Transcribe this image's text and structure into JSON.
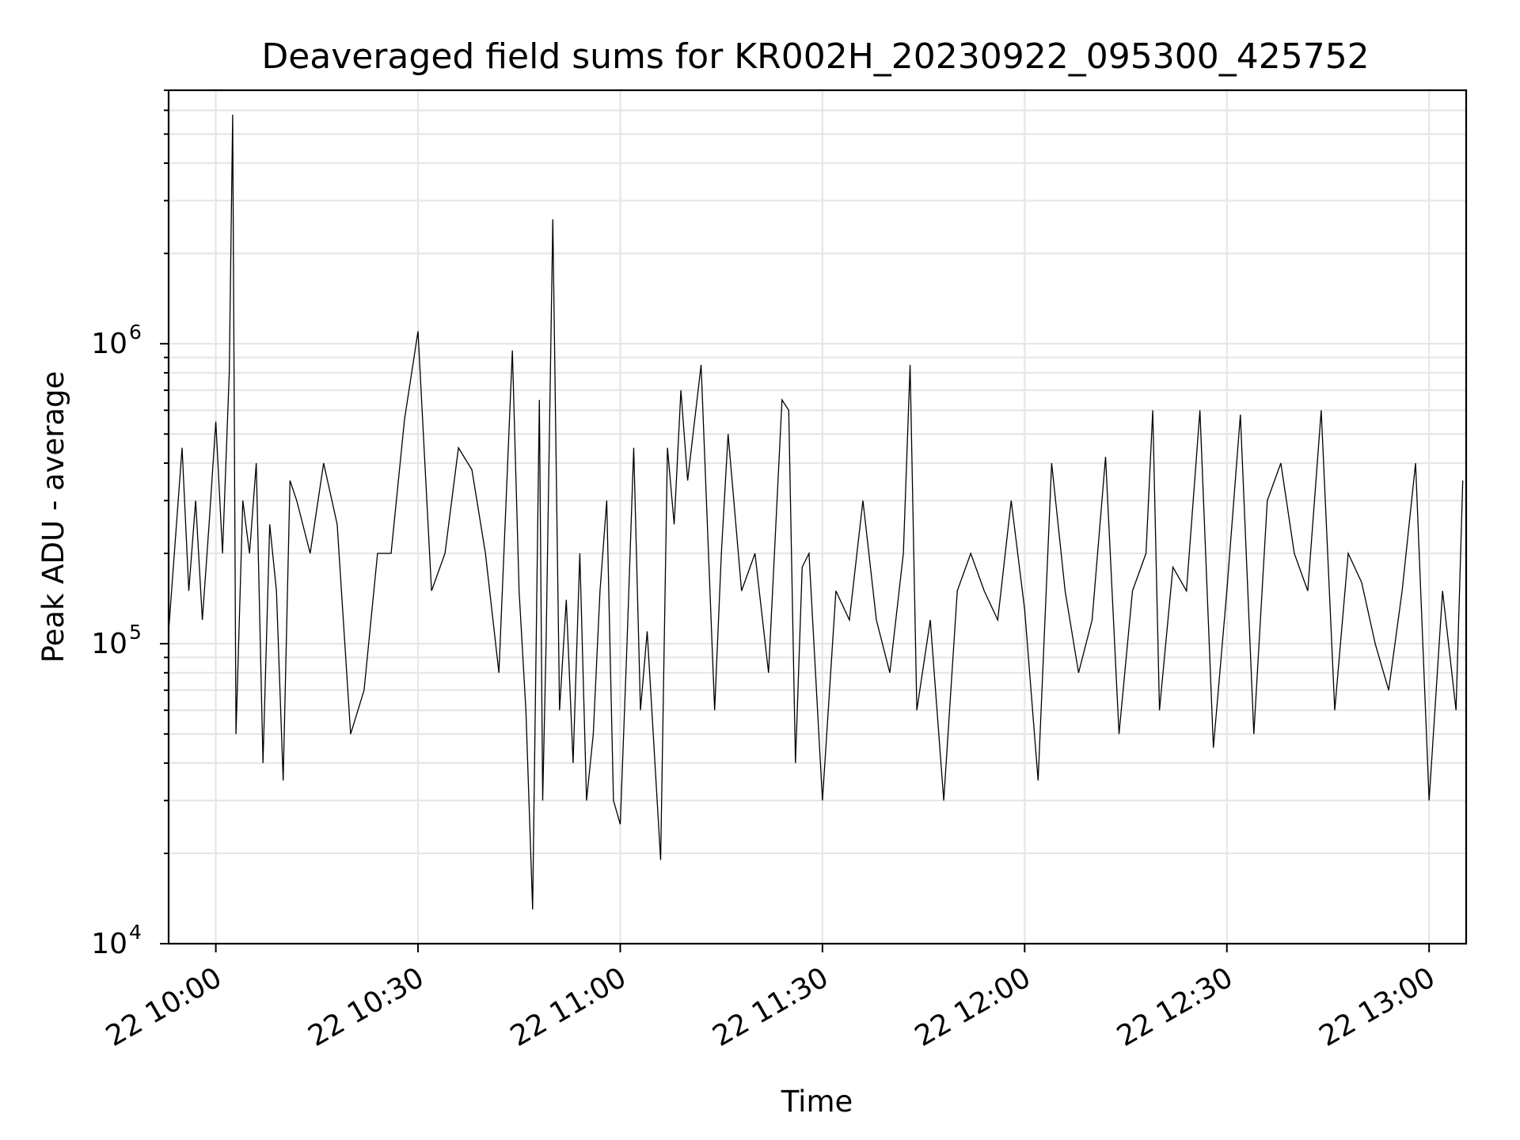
{
  "chart_data": {
    "type": "line",
    "title": "Deaveraged field sums for KR002H_20230922_095300_425752",
    "xlabel": "Time",
    "ylabel": "Peak ADU - average",
    "yscale": "log",
    "ylim": [
      10000,
      7000000
    ],
    "xlim": [
      "2023-09-22 09:53:00",
      "2023-09-22 13:05:30"
    ],
    "grid": true,
    "x_ticks": [
      {
        "value": "2023-09-22 10:00",
        "label": "22 10:00"
      },
      {
        "value": "2023-09-22 10:30",
        "label": "22 10:30"
      },
      {
        "value": "2023-09-22 11:00",
        "label": "22 11:00"
      },
      {
        "value": "2023-09-22 11:30",
        "label": "22 11:30"
      },
      {
        "value": "2023-09-22 12:00",
        "label": "22 12:00"
      },
      {
        "value": "2023-09-22 12:30",
        "label": "22 12:30"
      },
      {
        "value": "2023-09-22 13:00",
        "label": "22 13:00"
      }
    ],
    "y_ticks": [
      {
        "value": 10000,
        "base": "10",
        "exp": "4"
      },
      {
        "value": 100000,
        "base": "10",
        "exp": "5"
      },
      {
        "value": 1000000,
        "base": "10",
        "exp": "6"
      }
    ],
    "series": [
      {
        "color": "#000000",
        "x": [
          "09:53",
          "09:55",
          "09:56",
          "09:57",
          "09:58",
          "09:59",
          "10:00",
          "10:01",
          "10:02",
          "10:02.5",
          "10:03",
          "10:04",
          "10:05",
          "10:06",
          "10:07",
          "10:08",
          "10:09",
          "10:10",
          "10:11",
          "10:12",
          "10:14",
          "10:16",
          "10:18",
          "10:20",
          "10:22",
          "10:24",
          "10:26",
          "10:28",
          "10:30",
          "10:32",
          "10:34",
          "10:36",
          "10:38",
          "10:40",
          "10:42",
          "10:44",
          "10:45",
          "10:46",
          "10:47",
          "10:48",
          "10:48.5",
          "10:49",
          "10:50",
          "10:51",
          "10:52",
          "10:53",
          "10:54",
          "10:55",
          "10:56",
          "10:57",
          "10:58",
          "10:59",
          "11:00",
          "11:01",
          "11:02",
          "11:03",
          "11:04",
          "11:06",
          "11:07",
          "11:08",
          "11:09",
          "11:10",
          "11:12",
          "11:14",
          "11:15",
          "11:16",
          "11:18",
          "11:20",
          "11:22",
          "11:24",
          "11:25",
          "11:26",
          "11:27",
          "11:28",
          "11:30",
          "11:32",
          "11:34",
          "11:36",
          "11:38",
          "11:40",
          "11:42",
          "11:43",
          "11:44",
          "11:46",
          "11:48",
          "11:50",
          "11:52",
          "11:54",
          "11:56",
          "11:58",
          "12:00",
          "12:02",
          "12:04",
          "12:06",
          "12:08",
          "12:10",
          "12:12",
          "12:14",
          "12:16",
          "12:18",
          "12:19",
          "12:20",
          "12:22",
          "12:24",
          "12:26",
          "12:28",
          "12:30",
          "12:32",
          "12:34",
          "12:36",
          "12:38",
          "12:40",
          "12:42",
          "12:44",
          "12:46",
          "12:48",
          "12:50",
          "12:52",
          "12:54",
          "12:56",
          "12:58",
          "13:00",
          "13:02",
          "13:04",
          "13:05"
        ],
        "y": [
          110000,
          450000,
          150000,
          300000,
          120000,
          250000,
          550000,
          200000,
          800000,
          5800000,
          50000,
          300000,
          200000,
          400000,
          40000,
          250000,
          150000,
          35000,
          350000,
          300000,
          200000,
          400000,
          250000,
          50000,
          70000,
          200000,
          200000,
          560000,
          1100000,
          150000,
          200000,
          450000,
          380000,
          200000,
          80000,
          950000,
          150000,
          60000,
          13000,
          650000,
          30000,
          100000,
          2600000,
          60000,
          140000,
          40000,
          200000,
          30000,
          50000,
          150000,
          300000,
          30000,
          25000,
          100000,
          450000,
          60000,
          110000,
          19000,
          450000,
          250000,
          700000,
          350000,
          850000,
          60000,
          200000,
          500000,
          150000,
          200000,
          80000,
          650000,
          600000,
          40000,
          180000,
          200000,
          30000,
          150000,
          120000,
          300000,
          120000,
          80000,
          200000,
          850000,
          60000,
          120000,
          30000,
          150000,
          200000,
          150000,
          120000,
          300000,
          130000,
          35000,
          400000,
          150000,
          80000,
          120000,
          420000,
          50000,
          150000,
          200000,
          600000,
          60000,
          180000,
          150000,
          600000,
          45000,
          150000,
          580000,
          50000,
          300000,
          400000,
          200000,
          150000,
          600000,
          60000,
          200000,
          160000,
          100000,
          70000,
          150000,
          400000,
          30000,
          150000,
          60000,
          350000
        ]
      }
    ]
  }
}
